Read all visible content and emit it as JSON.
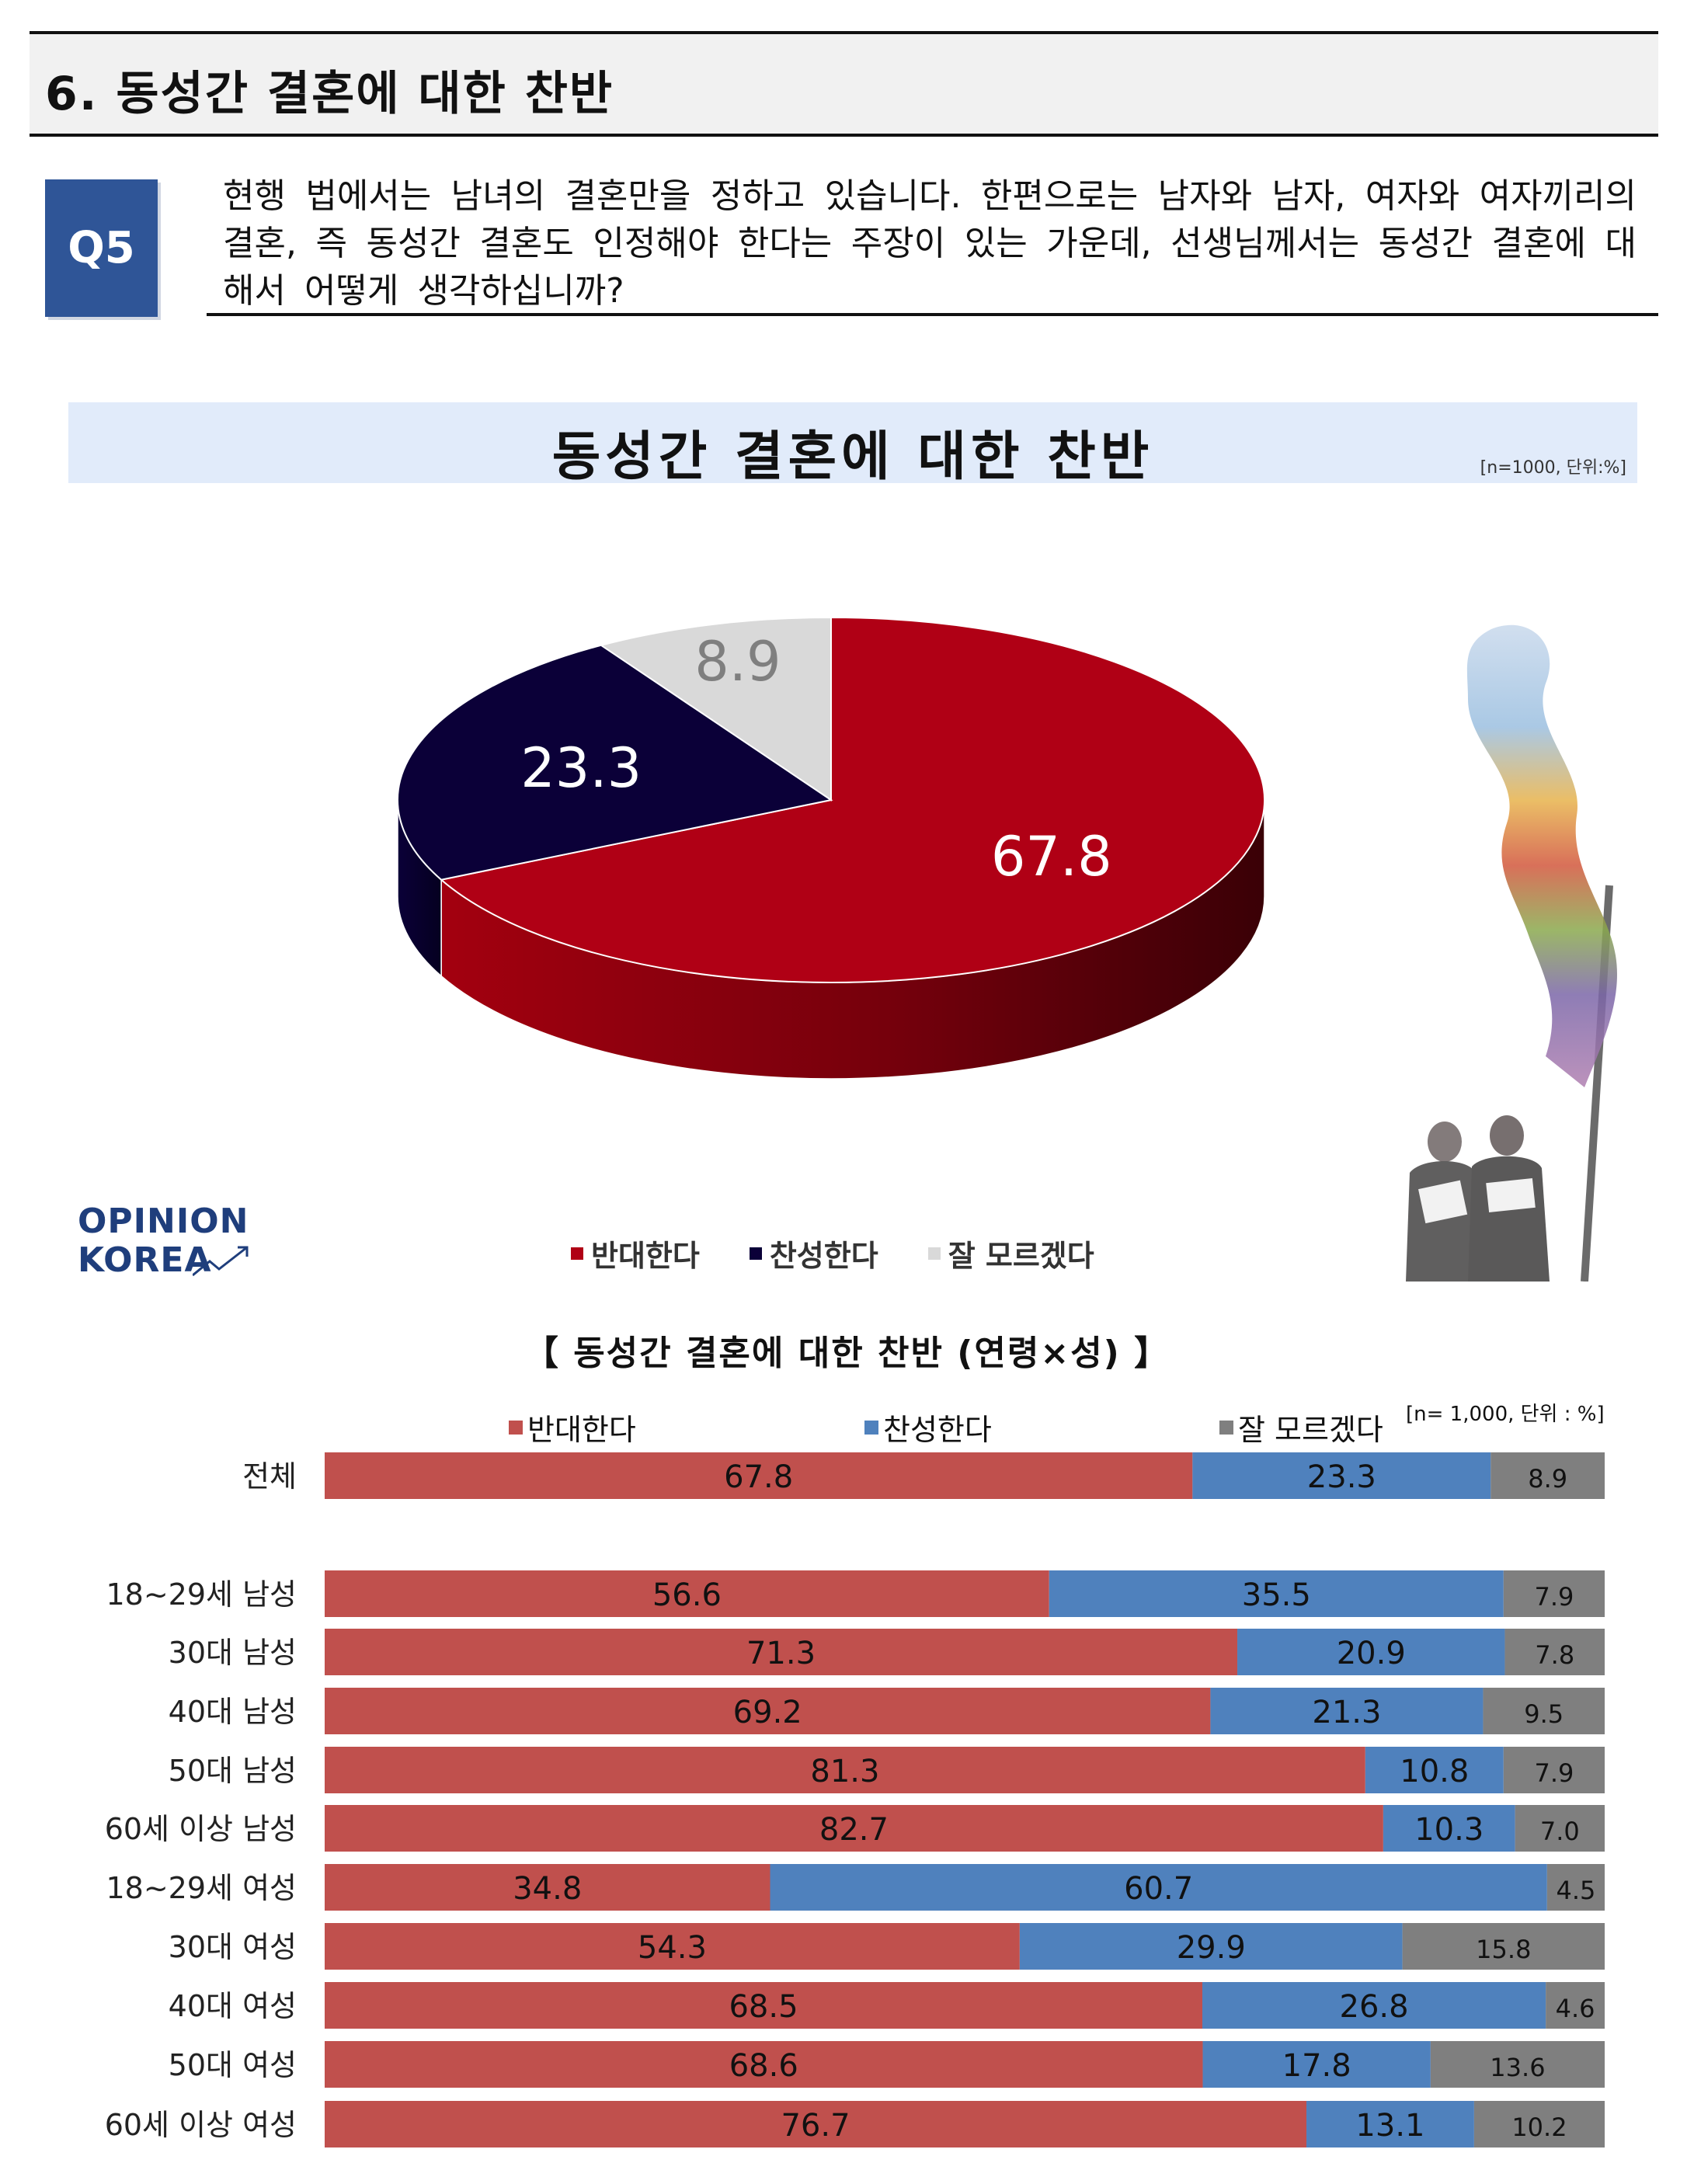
{
  "section": {
    "title": "6. 동성간 결혼에 대한 찬반"
  },
  "question": {
    "badge": "Q5",
    "text": "현행 법에서는 남녀의 결혼만을 정하고 있습니다. 한편으로는 남자와 남자, 여자와 여자끼리의 결혼, 즉 동성간 결혼도 인정해야 한다는 주장이 있는 가운데, 선생님께서는 동성간 결혼에 대해서 어떻게 생각하십니까?"
  },
  "logo": {
    "line1": "OPINION",
    "line2": "KOREA"
  },
  "colors": {
    "pie_oppose": "#b00015",
    "pie_support": "#0b0038",
    "pie_unsure": "#d9d9d9",
    "bar_oppose": "#c0504d",
    "bar_support": "#4f81bd",
    "bar_unsure": "#7f7f7f",
    "header_blue": "#2f5597",
    "band": "#e1ebfa"
  },
  "chart_data": [
    {
      "type": "pie",
      "title": "동성간 결혼에 대한 찬반",
      "note": "[n=1000, 단위:%]",
      "legend_position": "bottom",
      "categories": [
        "반대한다",
        "찬성한다",
        "잘 모르겠다"
      ],
      "values": [
        67.8,
        23.3,
        8.9
      ],
      "labels": [
        "67.8",
        "23.3",
        "8.9"
      ]
    },
    {
      "type": "bar",
      "orientation": "horizontal-stacked",
      "title": "【 동성간 결혼에 대한 찬반 (연령×성) 】",
      "note": "[n= 1,000, 단위 : %]",
      "legend_position": "top",
      "categories": [
        "전체",
        "18~29세 남성",
        "30대 남성",
        "40대 남성",
        "50대 남성",
        "60세 이상 남성",
        "18~29세 여성",
        "30대 여성",
        "40대 여성",
        "50대 여성",
        "60세 이상 여성"
      ],
      "series": [
        {
          "name": "반대한다",
          "values": [
            67.8,
            56.6,
            71.3,
            69.2,
            81.3,
            82.7,
            34.8,
            54.3,
            68.5,
            68.6,
            76.7
          ],
          "labels": [
            "67.8",
            "56.6",
            "71.3",
            "69.2",
            "81.3",
            "82.7",
            "34.8",
            "54.3",
            "68.5",
            "68.6",
            "76.7"
          ]
        },
        {
          "name": "찬성한다",
          "values": [
            23.3,
            35.5,
            20.9,
            21.3,
            10.8,
            10.3,
            60.7,
            29.9,
            26.8,
            17.8,
            13.1
          ],
          "labels": [
            "23.3",
            "35.5",
            "20.9",
            "21.3",
            "10.8",
            "10.3",
            "60.7",
            "29.9",
            "26.8",
            "17.8",
            "13.1"
          ]
        },
        {
          "name": "잘 모르겠다",
          "values": [
            8.9,
            7.9,
            7.8,
            9.5,
            7.9,
            7.0,
            4.5,
            15.8,
            4.6,
            13.6,
            10.2
          ],
          "labels": [
            "8.9",
            "7.9",
            "7.8",
            "9.5",
            "7.9",
            "7.0",
            "4.5",
            "15.8",
            "4.6",
            "13.6",
            "10.2"
          ]
        }
      ]
    }
  ]
}
